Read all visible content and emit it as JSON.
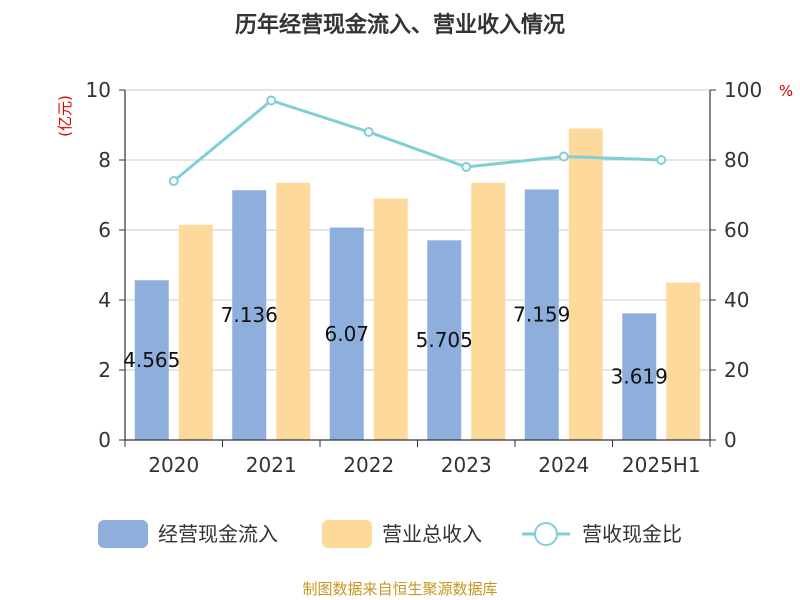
{
  "chart_data": {
    "type": "bar",
    "title": "历年经营现金流入、营业收入情况",
    "categories": [
      "2020",
      "2021",
      "2022",
      "2023",
      "2024",
      "2025H1"
    ],
    "series": [
      {
        "name": "经营现金流入",
        "kind": "bar",
        "axis": "left",
        "color": "#8eafdb",
        "values": [
          4.565,
          7.136,
          6.07,
          5.705,
          7.159,
          3.619
        ],
        "labels": [
          "4.565",
          "7.136",
          "6.07",
          "5.705",
          "7.159",
          "3.619"
        ]
      },
      {
        "name": "营业总收入",
        "kind": "bar",
        "axis": "left",
        "color": "#fdd99c",
        "values": [
          6.15,
          7.35,
          6.9,
          7.35,
          8.9,
          4.5
        ]
      },
      {
        "name": "营收现金比",
        "kind": "line",
        "axis": "right",
        "color": "#7fd0d6",
        "values": [
          74,
          97,
          88,
          78,
          81,
          80
        ]
      }
    ],
    "y_left": {
      "unit": "(亿元)",
      "min": 0,
      "max": 10,
      "ticks": [
        "0",
        "2",
        "4",
        "6",
        "8",
        "10"
      ]
    },
    "y_right": {
      "unit": "%",
      "min": 0,
      "max": 100,
      "ticks": [
        "0",
        "20",
        "40",
        "60",
        "80",
        "100"
      ]
    },
    "grid": true,
    "legend_position": "bottom"
  },
  "source": "制图数据来自恒生聚源数据库"
}
